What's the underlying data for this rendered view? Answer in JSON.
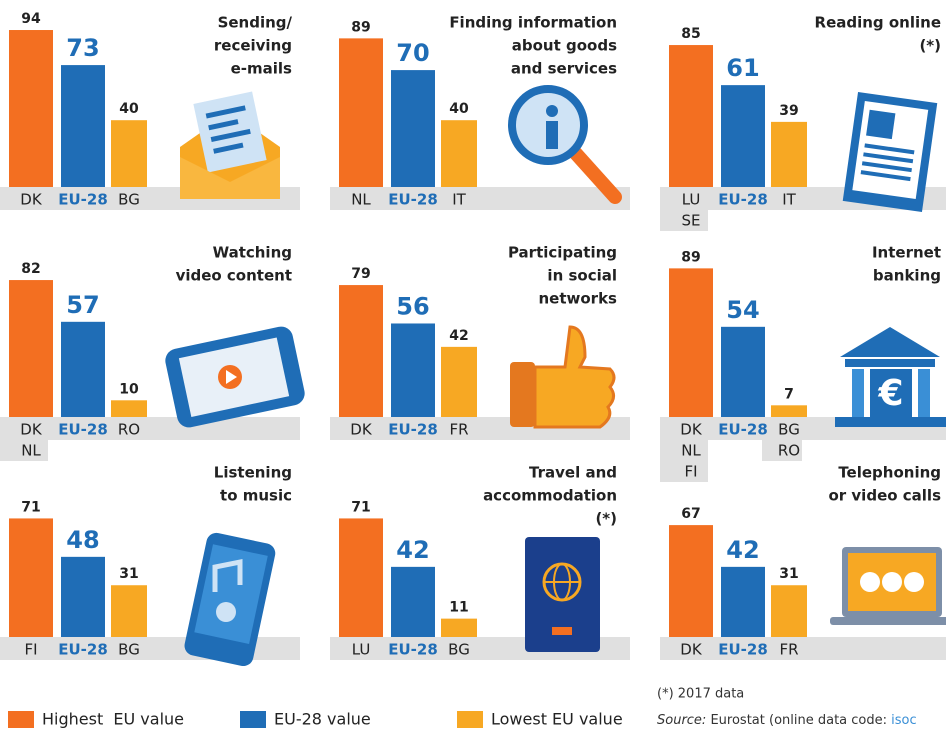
{
  "chart_data": [
    {
      "type": "bar",
      "title": [
        "Sending/",
        "receiving",
        "e-mails"
      ],
      "categories": [
        [
          "DK"
        ],
        [
          "EU-28"
        ],
        [
          "BG"
        ]
      ],
      "values": [
        94,
        73,
        40
      ],
      "ylim": [
        0,
        100
      ]
    },
    {
      "type": "bar",
      "title": [
        "Finding information",
        "about goods",
        "and services"
      ],
      "categories": [
        [
          "NL"
        ],
        [
          "EU-28"
        ],
        [
          "IT"
        ]
      ],
      "values": [
        89,
        70,
        40
      ],
      "ylim": [
        0,
        100
      ]
    },
    {
      "type": "bar",
      "title": [
        "Reading online",
        "(*)"
      ],
      "categories": [
        [
          "LU",
          "SE"
        ],
        [
          "EU-28"
        ],
        [
          "IT"
        ]
      ],
      "values": [
        85,
        61,
        39
      ],
      "ylim": [
        0,
        100
      ]
    },
    {
      "type": "bar",
      "title": [
        "Watching",
        "video content"
      ],
      "categories": [
        [
          "DK",
          "NL"
        ],
        [
          "EU-28"
        ],
        [
          "RO"
        ]
      ],
      "values": [
        82,
        57,
        10
      ],
      "ylim": [
        0,
        100
      ]
    },
    {
      "type": "bar",
      "title": [
        "Participating",
        "in social",
        "networks"
      ],
      "categories": [
        [
          "DK"
        ],
        [
          "EU-28"
        ],
        [
          "FR"
        ]
      ],
      "values": [
        79,
        56,
        42
      ],
      "ylim": [
        0,
        100
      ]
    },
    {
      "type": "bar",
      "title": [
        "Internet",
        "banking"
      ],
      "categories": [
        [
          "DK",
          "NL",
          "FI"
        ],
        [
          "EU-28"
        ],
        [
          "BG",
          "RO"
        ]
      ],
      "values": [
        89,
        54,
        7
      ],
      "ylim": [
        0,
        100
      ]
    },
    {
      "type": "bar",
      "title": [
        "Listening",
        "to music"
      ],
      "categories": [
        [
          "FI"
        ],
        [
          "EU-28"
        ],
        [
          "BG"
        ]
      ],
      "values": [
        71,
        48,
        31
      ],
      "ylim": [
        0,
        100
      ]
    },
    {
      "type": "bar",
      "title": [
        "Travel and",
        "accommodation",
        "(*)"
      ],
      "categories": [
        [
          "LU"
        ],
        [
          "EU-28"
        ],
        [
          "BG"
        ]
      ],
      "values": [
        71,
        42,
        11
      ],
      "ylim": [
        0,
        100
      ]
    },
    {
      "type": "bar",
      "title": [
        "Telephoning",
        "or video calls"
      ],
      "categories": [
        [
          "DK"
        ],
        [
          "EU-28"
        ],
        [
          "FR"
        ]
      ],
      "values": [
        67,
        42,
        31
      ],
      "ylim": [
        0,
        100
      ]
    }
  ],
  "legend": [
    {
      "label": "Highest  EU value",
      "color": "#f36f21"
    },
    {
      "label": "EU-28 value",
      "color": "#1f6db6"
    },
    {
      "label": "Lowest EU value",
      "color": "#f7a823"
    }
  ],
  "note": "(*) 2017 data",
  "source": {
    "label": "Source:",
    "text": " Eurostat (online data code: ",
    "code": "isoc"
  }
}
